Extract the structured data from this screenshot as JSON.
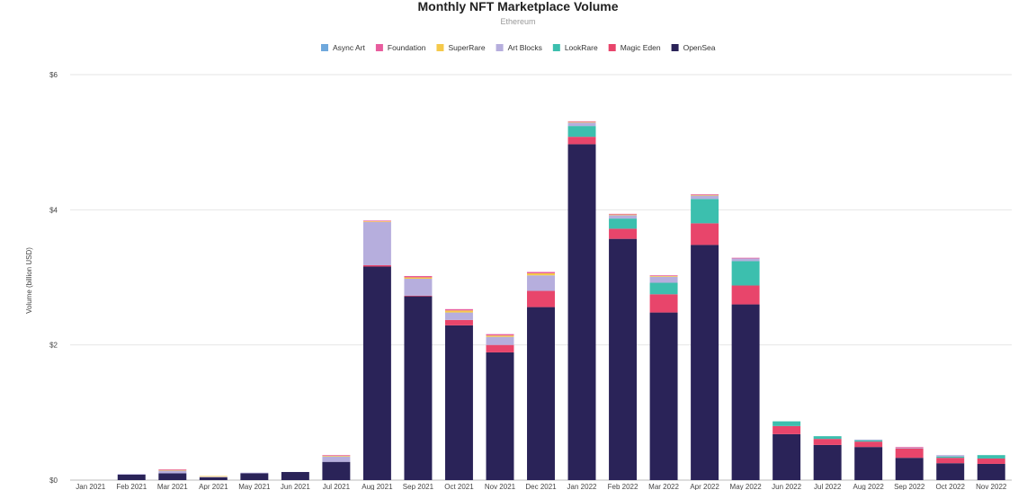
{
  "chart_data": {
    "type": "bar",
    "stacked": true,
    "title": "Monthly NFT Marketplace Volume",
    "subtitle": "Ethereum",
    "ylabel": "Volume (billion USD)",
    "xlabel": "",
    "ylim": [
      0,
      6
    ],
    "yticks": [
      0,
      2,
      4,
      6
    ],
    "ytick_labels": [
      "$0",
      "$2",
      "$4",
      "$6"
    ],
    "grid": true,
    "legend_position": "top",
    "categories": [
      "Jan 2021",
      "Feb 2021",
      "Mar 2021",
      "Apr 2021",
      "May 2021",
      "Jun 2021",
      "Jul 2021",
      "Aug 2021",
      "Sep 2021",
      "Oct 2021",
      "Nov 2021",
      "Dec 2021",
      "Jan 2022",
      "Feb 2022",
      "Mar 2022",
      "Apr 2022",
      "May 2022",
      "Jun 2022",
      "Jul 2022",
      "Aug 2022",
      "Sep 2022",
      "Oct 2022",
      "Nov 2022"
    ],
    "legend_order": [
      "Async Art",
      "Foundation",
      "SuperRare",
      "Art Blocks",
      "LookRare",
      "Magic Eden",
      "OpenSea"
    ],
    "series": [
      {
        "name": "OpenSea",
        "color": "#2a2358",
        "values": [
          0,
          0.08,
          0.1,
          0.04,
          0.1,
          0.12,
          0.27,
          3.16,
          2.72,
          2.29,
          1.89,
          2.56,
          4.97,
          3.57,
          2.48,
          3.48,
          2.6,
          0.68,
          0.52,
          0.49,
          0.33,
          0.25,
          0.24
        ]
      },
      {
        "name": "Magic Eden",
        "color": "#e8456b",
        "values": [
          0,
          0,
          0,
          0,
          0,
          0,
          0,
          0.02,
          0.01,
          0.08,
          0.11,
          0.24,
          0.11,
          0.15,
          0.27,
          0.32,
          0.28,
          0.12,
          0.09,
          0.08,
          0.14,
          0.08,
          0.08
        ]
      },
      {
        "name": "LookRare",
        "color": "#3cbfae",
        "values": [
          0,
          0,
          0,
          0,
          0,
          0,
          0,
          0,
          0,
          0,
          0,
          0,
          0.16,
          0.15,
          0.17,
          0.36,
          0.36,
          0.07,
          0.04,
          0.02,
          0,
          0.02,
          0.05
        ]
      },
      {
        "name": "Art Blocks",
        "color": "#b6aedd",
        "values": [
          0,
          0.01,
          0.04,
          0.01,
          0.01,
          0,
          0.08,
          0.64,
          0.25,
          0.11,
          0.12,
          0.23,
          0.05,
          0.05,
          0.09,
          0.05,
          0.04,
          0,
          0,
          0.01,
          0.01,
          0.02,
          0
        ]
      },
      {
        "name": "SuperRare",
        "color": "#f5c94a",
        "values": [
          0,
          0,
          0.01,
          0.01,
          0,
          0,
          0.01,
          0.01,
          0.02,
          0.03,
          0.02,
          0.03,
          0.01,
          0.01,
          0.01,
          0.01,
          0,
          0,
          0,
          0,
          0,
          0,
          0
        ]
      },
      {
        "name": "Foundation",
        "color": "#e85d9e",
        "values": [
          0,
          0,
          0.01,
          0,
          0,
          0,
          0.01,
          0.01,
          0.02,
          0.02,
          0.02,
          0.02,
          0.01,
          0.01,
          0.01,
          0.01,
          0.01,
          0,
          0,
          0,
          0.01,
          0,
          0
        ]
      },
      {
        "name": "Async Art",
        "color": "#6fa8dc",
        "values": [
          0,
          0,
          0,
          0,
          0,
          0,
          0,
          0,
          0,
          0,
          0,
          0,
          0,
          0,
          0,
          0,
          0,
          0,
          0,
          0,
          0,
          0,
          0
        ]
      }
    ]
  }
}
